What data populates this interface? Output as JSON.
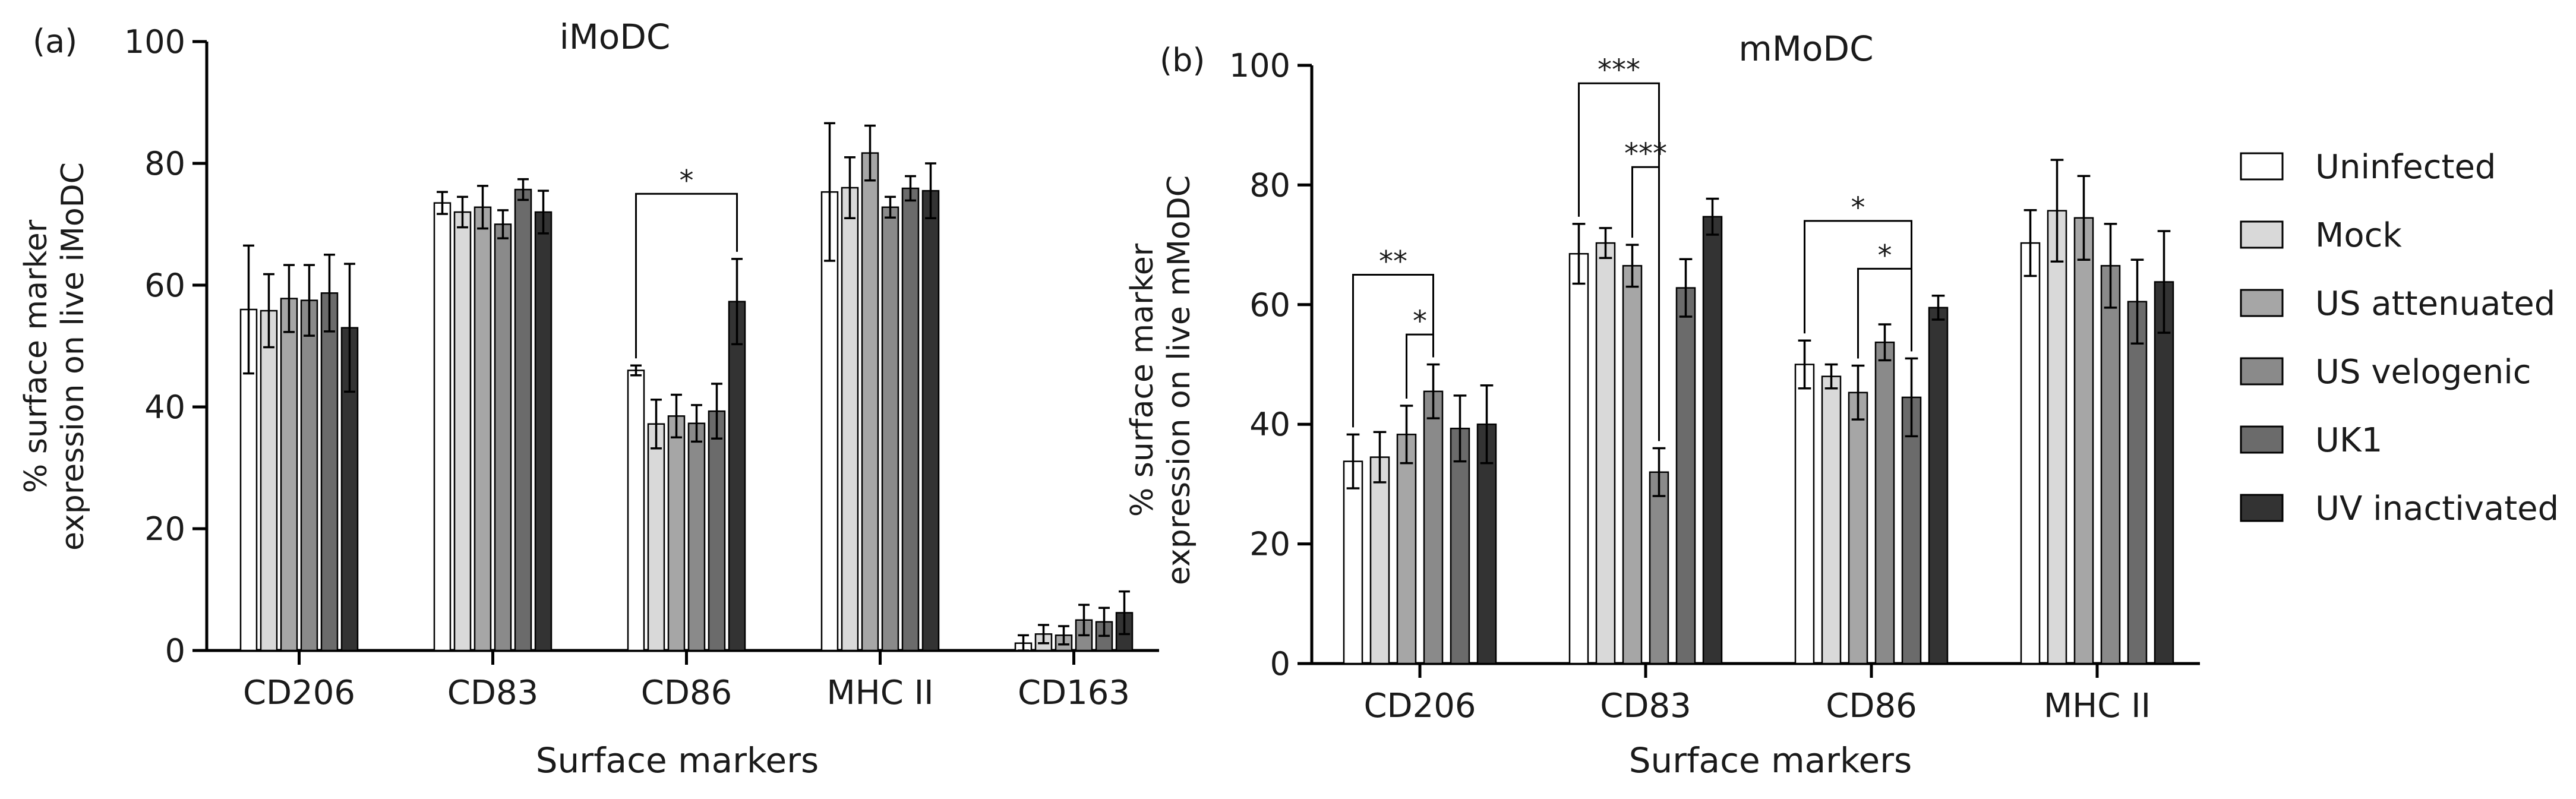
{
  "chart_data": [
    {
      "panel": "(a)",
      "type": "bar",
      "title": "iMoDC",
      "xlabel": "Surface markers",
      "ylabel": [
        "% surface marker",
        "expression on live iMoDC"
      ],
      "ylim": [
        0,
        100
      ],
      "yticks": [
        0,
        20,
        40,
        60,
        80,
        100
      ],
      "categories": [
        "CD206",
        "CD83",
        "CD86",
        "MHC II",
        "CD163"
      ],
      "series": [
        {
          "name": "Uninfected",
          "values": [
            56,
            73.5,
            46,
            75.3,
            1.2
          ],
          "errors": [
            10.5,
            1.8,
            0.8,
            11.3,
            1.3
          ]
        },
        {
          "name": "Mock",
          "values": [
            55.8,
            72,
            37.2,
            76,
            2.7
          ],
          "errors": [
            6,
            2.5,
            4,
            5,
            1.5
          ]
        },
        {
          "name": "US attenuated",
          "values": [
            57.8,
            72.8,
            38.5,
            81.7,
            2.5
          ],
          "errors": [
            5.5,
            3.5,
            3.5,
            4.5,
            1.5
          ]
        },
        {
          "name": "US velogenic",
          "values": [
            57.5,
            70,
            37.3,
            72.8,
            5
          ],
          "errors": [
            5.8,
            2.3,
            3,
            1.7,
            2.5
          ]
        },
        {
          "name": "UK1",
          "values": [
            58.7,
            75.7,
            39.3,
            75.9,
            4.7
          ],
          "errors": [
            6.3,
            1.7,
            4.5,
            2,
            2.3
          ]
        },
        {
          "name": "UV inactivated",
          "values": [
            53,
            72,
            57.3,
            75.5,
            6.2
          ],
          "errors": [
            10.5,
            3.5,
            7,
            4.5,
            3.5
          ]
        }
      ],
      "annotations": [
        {
          "category": "CD86",
          "from_series": "Uninfected",
          "to_series": "UV inactivated",
          "label": "*",
          "y": 75
        }
      ]
    },
    {
      "panel": "(b)",
      "type": "bar",
      "title": "mMoDC",
      "xlabel": "Surface markers",
      "ylabel": [
        "% surface marker",
        "expression on live mMoDC"
      ],
      "ylim": [
        0,
        100
      ],
      "yticks": [
        0,
        20,
        40,
        60,
        80,
        100
      ],
      "categories": [
        "CD206",
        "CD83",
        "CD86",
        "MHC II"
      ],
      "series": [
        {
          "name": "Uninfected",
          "values": [
            33.8,
            68.5,
            50,
            70.3
          ],
          "errors": [
            4.5,
            5,
            4,
            5.5
          ]
        },
        {
          "name": "Mock",
          "values": [
            34.5,
            70.3,
            48,
            75.7
          ],
          "errors": [
            4.2,
            2.5,
            2,
            8.5
          ]
        },
        {
          "name": "US attenuated",
          "values": [
            38.3,
            66.5,
            45.3,
            74.5
          ],
          "errors": [
            4.8,
            3.5,
            4.5,
            7
          ]
        },
        {
          "name": "US velogenic",
          "values": [
            45.5,
            32,
            53.7,
            66.5
          ],
          "errors": [
            4.5,
            4,
            3,
            7
          ]
        },
        {
          "name": "UK1",
          "values": [
            39.3,
            62.8,
            44.5,
            60.5
          ],
          "errors": [
            5.5,
            4.8,
            6.5,
            7
          ]
        },
        {
          "name": "UV inactivated",
          "values": [
            40,
            74.7,
            59.5,
            63.8
          ],
          "errors": [
            6.5,
            3,
            2,
            8.5
          ]
        }
      ],
      "annotations": [
        {
          "category": "CD206",
          "from_series": "Uninfected",
          "to_series": "US velogenic",
          "label": "**",
          "y": 65
        },
        {
          "category": "CD206",
          "from_series": "US attenuated",
          "to_series": "US velogenic",
          "label": "*",
          "y": 55
        },
        {
          "category": "CD83",
          "from_series": "Uninfected",
          "to_series": "US velogenic",
          "label": "***",
          "y": 97
        },
        {
          "category": "CD83",
          "from_series": "US attenuated",
          "to_series": "US velogenic",
          "label": "***",
          "y": 83
        },
        {
          "category": "CD86",
          "from_series": "Uninfected",
          "to_series": "UK1",
          "label": "*",
          "y": 74
        },
        {
          "category": "CD86",
          "from_series": "US attenuated",
          "to_series": "UK1",
          "label": "*",
          "y": 66
        }
      ]
    }
  ],
  "legend": {
    "position": "right",
    "items": [
      {
        "label": "Uninfected",
        "color": "#ffffff"
      },
      {
        "label": "Mock",
        "color": "#d9d9d9"
      },
      {
        "label": "US attenuated",
        "color": "#a6a6a6"
      },
      {
        "label": "US velogenic",
        "color": "#8a8a8a"
      },
      {
        "label": "UK1",
        "color": "#6b6b6b"
      },
      {
        "label": "UV inactivated",
        "color": "#333333"
      }
    ]
  }
}
